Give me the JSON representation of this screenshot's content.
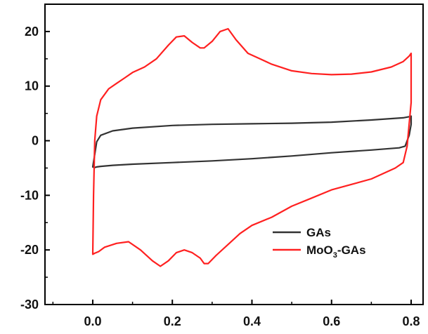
{
  "chart_data": {
    "type": "line",
    "title": "",
    "xlabel": "",
    "ylabel": "",
    "xlim": [
      -0.12,
      0.83
    ],
    "ylim": [
      -30,
      25
    ],
    "x_ticks": [
      0.0,
      0.2,
      0.4,
      0.6,
      0.8
    ],
    "x_tick_labels": [
      "0.0",
      "0.2",
      "0.4",
      "0.6",
      "0.8"
    ],
    "y_ticks": [
      -30,
      -20,
      -10,
      0,
      10,
      20
    ],
    "y_tick_labels": [
      "-30",
      "-20",
      "-10",
      "0",
      "10",
      "20"
    ],
    "grid": false,
    "legend_position": "bottom-right",
    "colors": {
      "GAs": "#333333",
      "MoO3-GAs": "#ff2020",
      "axis": "#000000"
    },
    "series": [
      {
        "name": "GAs",
        "legend_main": "GAs",
        "legend_sub": "",
        "legend_tail": "",
        "x": [
          0.0,
          0.005,
          0.01,
          0.02,
          0.05,
          0.1,
          0.2,
          0.3,
          0.4,
          0.5,
          0.6,
          0.7,
          0.78,
          0.795,
          0.8,
          0.8,
          0.795,
          0.785,
          0.77,
          0.7,
          0.6,
          0.5,
          0.4,
          0.3,
          0.2,
          0.1,
          0.05,
          0.02,
          0.01,
          0.005,
          0.0
        ],
        "y": [
          -4.8,
          -2.5,
          -0.2,
          1.0,
          1.8,
          2.3,
          2.8,
          3.0,
          3.1,
          3.2,
          3.4,
          3.8,
          4.2,
          4.4,
          4.5,
          3.0,
          1.0,
          -1.0,
          -1.3,
          -1.7,
          -2.2,
          -2.8,
          -3.3,
          -3.7,
          -4.0,
          -4.3,
          -4.5,
          -4.7,
          -4.8,
          -4.9,
          -4.8
        ]
      },
      {
        "name": "MoO3-GAs",
        "legend_main": "MoO",
        "legend_sub": "3",
        "legend_tail": "-GAs",
        "x": [
          0.0,
          0.002,
          0.005,
          0.01,
          0.02,
          0.04,
          0.06,
          0.08,
          0.1,
          0.13,
          0.16,
          0.19,
          0.21,
          0.23,
          0.25,
          0.27,
          0.28,
          0.3,
          0.32,
          0.34,
          0.36,
          0.39,
          0.42,
          0.45,
          0.5,
          0.55,
          0.6,
          0.65,
          0.7,
          0.75,
          0.78,
          0.795,
          0.8,
          0.8,
          0.79,
          0.78,
          0.76,
          0.73,
          0.7,
          0.65,
          0.6,
          0.55,
          0.5,
          0.45,
          0.4,
          0.37,
          0.34,
          0.31,
          0.29,
          0.28,
          0.27,
          0.25,
          0.23,
          0.21,
          0.19,
          0.17,
          0.15,
          0.12,
          0.09,
          0.06,
          0.03,
          0.015,
          0.005,
          0.0
        ],
        "y": [
          -20.8,
          -10.0,
          0.0,
          4.5,
          7.5,
          9.5,
          10.5,
          11.5,
          12.5,
          13.5,
          15.0,
          17.5,
          19.0,
          19.2,
          18.0,
          17.0,
          17.0,
          18.2,
          20.0,
          20.5,
          18.5,
          16.0,
          15.0,
          14.0,
          12.8,
          12.3,
          12.1,
          12.2,
          12.6,
          13.5,
          14.5,
          15.5,
          16.0,
          7.0,
          -1.0,
          -4.0,
          -5.0,
          -6.0,
          -7.0,
          -8.0,
          -9.0,
          -10.5,
          -12.0,
          -14.0,
          -15.5,
          -17.0,
          -19.0,
          -21.0,
          -22.5,
          -22.5,
          -21.5,
          -20.5,
          -20.0,
          -20.5,
          -22.0,
          -23.0,
          -22.0,
          -20.0,
          -18.5,
          -18.8,
          -19.5,
          -20.3,
          -20.6,
          -20.8
        ]
      }
    ]
  }
}
